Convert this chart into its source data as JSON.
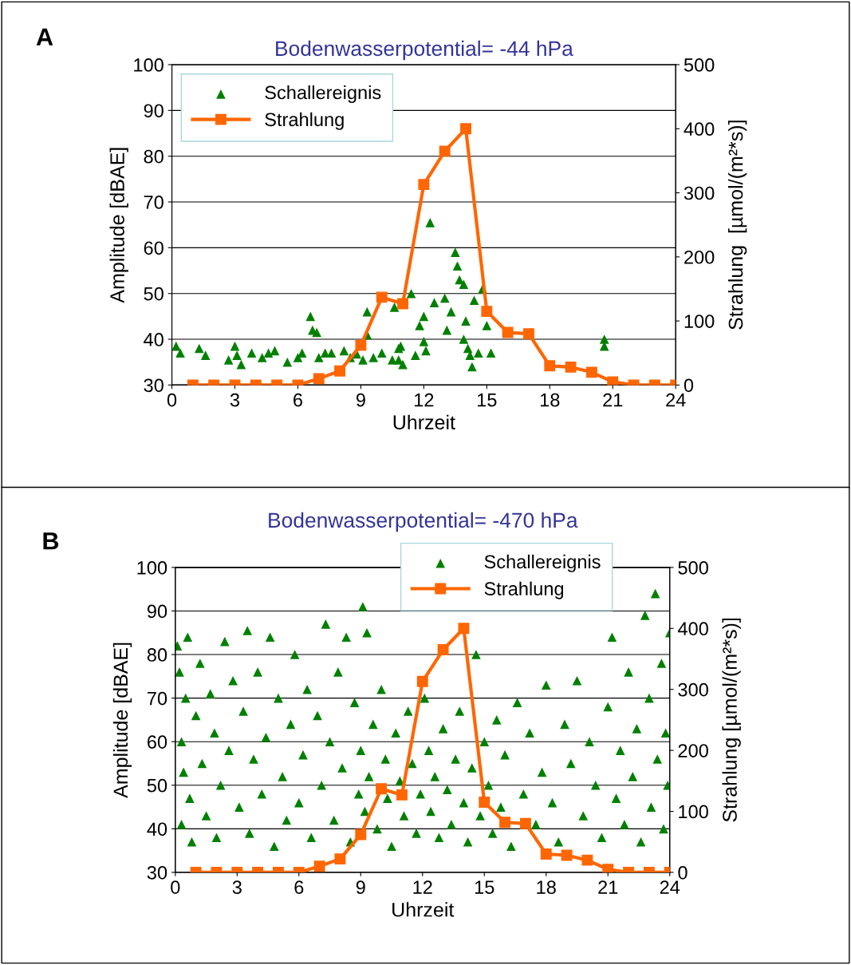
{
  "chart_data": [
    {
      "type": "scatter",
      "title": "Bodenwasserpotential= -44 hPa",
      "xlabel": "Uhrzeit",
      "ylabel": "Amplitude [dBAE]",
      "y2label": "Strahlung  [µmol/(m²*s)]",
      "annotations": [
        "A"
      ],
      "xlim": [
        0,
        24
      ],
      "xticks": [
        0,
        3,
        6,
        9,
        12,
        15,
        18,
        21,
        24
      ],
      "ylim": [
        30,
        100
      ],
      "yticks": [
        30,
        40,
        50,
        60,
        70,
        80,
        90,
        100
      ],
      "y2lim": [
        0,
        500
      ],
      "y2ticks": [
        0,
        100,
        200,
        300,
        400,
        500
      ],
      "grid": "y",
      "legend": "top left",
      "series": [
        {
          "name": "Schallereignis",
          "axis": "y",
          "color": "#008000",
          "marker": "triangle",
          "x": [
            0.2,
            0.4,
            1.3,
            1.6,
            2.7,
            3.0,
            3.1,
            3.3,
            3.8,
            4.3,
            4.6,
            4.9,
            5.5,
            6.0,
            6.2,
            6.6,
            6.7,
            6.9,
            7.0,
            7.3,
            7.6,
            8.2,
            8.5,
            8.8,
            9.1,
            9.3,
            9.3,
            9.6,
            10.0,
            10.5,
            10.6,
            10.8,
            10.8,
            10.9,
            11.0,
            11.4,
            11.6,
            11.8,
            12.0,
            12.0,
            12.1,
            12.3,
            12.5,
            13.0,
            13.1,
            13.3,
            13.5,
            13.6,
            13.7,
            13.9,
            13.9,
            14.0,
            14.1,
            14.2,
            14.3,
            14.4,
            14.6,
            14.8,
            15.0,
            15.2,
            20.6,
            20.6
          ],
          "values": [
            38.5,
            37,
            38,
            36.5,
            35.5,
            38.5,
            36.5,
            34.5,
            37,
            36,
            37,
            37.5,
            35,
            36,
            37,
            45,
            42,
            41.5,
            36,
            37,
            37,
            37.5,
            36,
            36.8,
            35.5,
            46,
            41,
            36,
            37,
            35.5,
            47,
            38,
            35.5,
            38.5,
            34.5,
            50,
            36.5,
            43,
            45,
            39.5,
            37.5,
            65.5,
            48,
            49,
            42,
            46,
            59,
            56,
            53,
            52,
            40,
            44,
            38,
            36.5,
            34,
            48.5,
            37,
            51,
            43,
            37,
            40,
            38.5
          ]
        },
        {
          "name": "Strahlung",
          "type": "line",
          "axis": "y2",
          "color": "#ff6600",
          "marker": "square",
          "line_style": "solid",
          "x": [
            1,
            2,
            3,
            4,
            5,
            6,
            7,
            8,
            9,
            10,
            11,
            12,
            13,
            14,
            15,
            16,
            17,
            18,
            19,
            20,
            21,
            22,
            23,
            24
          ],
          "values": [
            0,
            0,
            0,
            0,
            0,
            0,
            10,
            22,
            62,
            137,
            127,
            313,
            365,
            400,
            115,
            82,
            80,
            30,
            28,
            20,
            5,
            0,
            0,
            0
          ]
        }
      ]
    },
    {
      "type": "scatter",
      "title": "Bodenwasserpotential= -470 hPa",
      "xlabel": "Uhrzeit",
      "ylabel": "Amplitude [dBAE]",
      "y2label": "Strahlung [µmol/(m²*s)]",
      "annotations": [
        "B"
      ],
      "xlim": [
        0,
        24
      ],
      "xticks": [
        0,
        3,
        6,
        9,
        12,
        15,
        18,
        21,
        24
      ],
      "ylim": [
        30,
        100
      ],
      "yticks": [
        30,
        40,
        50,
        60,
        70,
        80,
        90,
        100
      ],
      "y2lim": [
        0,
        500
      ],
      "y2ticks": [
        0,
        100,
        200,
        300,
        400,
        500
      ],
      "grid": "y",
      "legend": "top",
      "series": [
        {
          "name": "Schallereignis",
          "axis": "y",
          "color": "#008000",
          "marker": "triangle",
          "x": [
            0.1,
            0.2,
            0.3,
            0.3,
            0.4,
            0.5,
            0.6,
            0.7,
            0.8,
            1.0,
            1.2,
            1.3,
            1.5,
            1.7,
            1.9,
            2.0,
            2.2,
            2.4,
            2.6,
            2.8,
            3.1,
            3.3,
            3.5,
            3.6,
            3.8,
            4.0,
            4.2,
            4.4,
            4.6,
            4.8,
            5.0,
            5.2,
            5.4,
            5.6,
            5.8,
            6.0,
            6.2,
            6.4,
            6.6,
            6.9,
            7.1,
            7.3,
            7.5,
            7.7,
            7.9,
            8.1,
            8.3,
            8.5,
            8.7,
            8.9,
            9.0,
            9.1,
            9.2,
            9.3,
            9.4,
            9.6,
            9.8,
            10.0,
            10.2,
            10.3,
            10.5,
            10.7,
            10.9,
            11.1,
            11.3,
            11.5,
            11.7,
            11.9,
            12.1,
            12.3,
            12.4,
            12.6,
            12.8,
            13.0,
            13.2,
            13.4,
            13.6,
            13.8,
            14.0,
            14.2,
            14.4,
            14.6,
            14.8,
            15.0,
            15.2,
            15.4,
            15.6,
            15.8,
            16.0,
            16.3,
            16.6,
            16.9,
            17.2,
            17.5,
            17.8,
            18.0,
            18.3,
            18.6,
            18.9,
            19.2,
            19.5,
            19.8,
            20.1,
            20.4,
            20.7,
            21.0,
            21.2,
            21.4,
            21.6,
            21.8,
            22.0,
            22.2,
            22.4,
            22.6,
            22.8,
            23.0,
            23.1,
            23.3,
            23.4,
            23.6,
            23.7,
            23.8,
            23.9,
            24.0
          ],
          "values": [
            82,
            76,
            60,
            41,
            53,
            70,
            84,
            47,
            37,
            66,
            78,
            55,
            43,
            71,
            62,
            38,
            50,
            83,
            58,
            74,
            45,
            67,
            85.5,
            39,
            56,
            76,
            48,
            61,
            84,
            36,
            70,
            52,
            42,
            64,
            80,
            46,
            57,
            72,
            38,
            66,
            50,
            87,
            60,
            42,
            76,
            54,
            84,
            37,
            69,
            48,
            58,
            91,
            44,
            85,
            52,
            64,
            40,
            72,
            56,
            47,
            36,
            62,
            51,
            43,
            67,
            55,
            39,
            48,
            70,
            58,
            44,
            52,
            38,
            63,
            49,
            41,
            56,
            67,
            46,
            37,
            54,
            80,
            43,
            60,
            50,
            39,
            65,
            45,
            57,
            36,
            69,
            48,
            62,
            41,
            53,
            73,
            46,
            37,
            64,
            55,
            74,
            43,
            60,
            50,
            38,
            68,
            84,
            47,
            58,
            41,
            76,
            52,
            63,
            37,
            89,
            70,
            45,
            94,
            56,
            78,
            40,
            62,
            50,
            85
          ]
        },
        {
          "name": "Strahlung",
          "type": "line",
          "axis": "y2",
          "color": "#ff6600",
          "marker": "square",
          "line_style": "solid",
          "x": [
            1,
            2,
            3,
            4,
            5,
            6,
            7,
            8,
            9,
            10,
            11,
            12,
            13,
            14,
            15,
            16,
            17,
            18,
            19,
            20,
            21,
            22,
            23,
            24
          ],
          "values": [
            0,
            0,
            0,
            0,
            0,
            0,
            10,
            22,
            62,
            137,
            127,
            313,
            365,
            400,
            115,
            82,
            80,
            30,
            28,
            20,
            5,
            0,
            0,
            0
          ]
        }
      ]
    }
  ]
}
